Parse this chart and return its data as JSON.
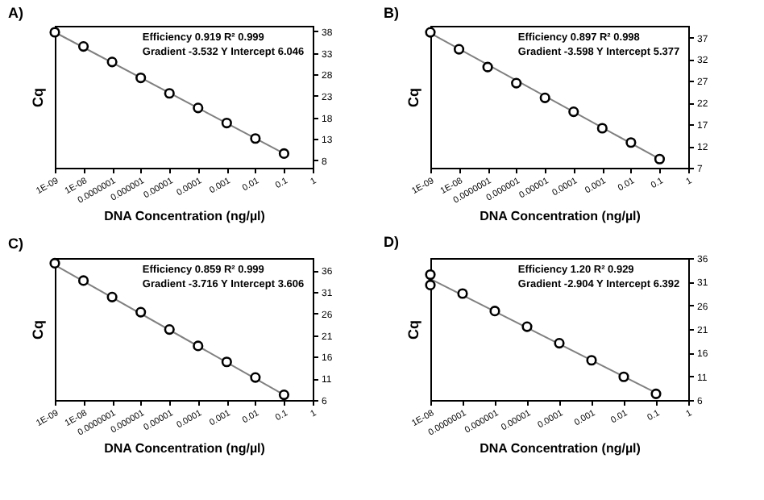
{
  "chart_data": [
    {
      "type": "scatter",
      "title": "A)",
      "xlabel": "DNA Concentration (ng/µl)",
      "ylabel": "Cq",
      "annotations": [
        "Efficiency 0.919   R² 0.999",
        "Gradient -3.532    Y Intercept 6.046"
      ],
      "log": "x",
      "marker": "circle",
      "xlim": [
        1e-09,
        1
      ],
      "xticks": [
        {
          "value": 1e-09,
          "label": "1E-09"
        },
        {
          "value": 1e-08,
          "label": "1E-08"
        },
        {
          "value": 1e-07,
          "label": "0.0000001"
        },
        {
          "value": 1e-06,
          "label": "0.000001"
        },
        {
          "value": 1e-05,
          "label": "0.00001"
        },
        {
          "value": 0.0001,
          "label": "0.0001"
        },
        {
          "value": 0.001,
          "label": "0.001"
        },
        {
          "value": 0.01,
          "label": "0.01"
        },
        {
          "value": 0.1,
          "label": "0.1"
        },
        {
          "value": 1,
          "label": "1"
        }
      ],
      "ylim": [
        6.3,
        39.3
      ],
      "yticks": [
        8,
        13,
        18,
        23,
        28,
        33,
        38
      ],
      "series": [
        {
          "type": "scatter",
          "color": "#000000",
          "x": [
            1e-09,
            1e-08,
            1e-07,
            1e-06,
            1e-05,
            0.0001,
            0.001,
            0.01,
            0.1
          ],
          "values": [
            37.8,
            34.5,
            30.9,
            27.2,
            23.6,
            20.2,
            16.7,
            13.1,
            9.6
          ]
        },
        {
          "type": "line",
          "marker": "none",
          "color": "#808080",
          "x": [
            1e-09,
            0.1
          ],
          "values": [
            37.8,
            9.6
          ]
        }
      ]
    },
    {
      "type": "scatter",
      "title": "B)",
      "xlabel": "DNA Concentration (ng/µl)",
      "ylabel": "Cq",
      "annotations": [
        "Efficiency 0.897   R² 0.998",
        "Gradient -3.598   Y Intercept 5.377"
      ],
      "log": "x",
      "marker": "circle",
      "xlim": [
        1e-09,
        1
      ],
      "xticks": [
        {
          "value": 1e-09,
          "label": "1E-09"
        },
        {
          "value": 1e-08,
          "label": "1E-08"
        },
        {
          "value": 1e-07,
          "label": "0.0000001"
        },
        {
          "value": 1e-06,
          "label": "0.000001"
        },
        {
          "value": 1e-05,
          "label": "0.00001"
        },
        {
          "value": 0.0001,
          "label": "0.0001"
        },
        {
          "value": 0.001,
          "label": "0.001"
        },
        {
          "value": 0.01,
          "label": "0.01"
        },
        {
          "value": 0.1,
          "label": "0.1"
        },
        {
          "value": 1,
          "label": "1"
        }
      ],
      "ylim": [
        7,
        39.7
      ],
      "yticks": [
        7,
        12,
        17,
        22,
        27,
        32,
        37
      ],
      "series": [
        {
          "type": "scatter",
          "color": "#000000",
          "x": [
            1e-09,
            1e-08,
            1e-07,
            1e-06,
            1e-05,
            0.0001,
            0.001,
            0.01,
            0.1
          ],
          "values": [
            38.2,
            34.3,
            30.2,
            26.5,
            23.1,
            19.9,
            16.1,
            12.8,
            9.0
          ]
        },
        {
          "type": "line",
          "marker": "none",
          "color": "#808080",
          "x": [
            1e-09,
            0.1
          ],
          "values": [
            38.0,
            9.0
          ]
        }
      ]
    },
    {
      "type": "scatter",
      "title": "C)",
      "xlabel": "DNA Concentration (ng/µl)",
      "ylabel": "Cq",
      "annotations": [
        "Efficiency 0.859  R² 0.999",
        "Gradient -3.716  Y Intercept 3.606"
      ],
      "log": "x",
      "marker": "circle",
      "xlim": [
        1e-09,
        1
      ],
      "xticks": [
        {
          "value": 1e-09,
          "label": "1E-09"
        },
        {
          "value": 1e-08,
          "label": "1E-08"
        },
        {
          "value": 1e-07,
          "label": "0.0000001"
        },
        {
          "value": 1e-06,
          "label": "0.000001"
        },
        {
          "value": 1e-05,
          "label": "0.00001"
        },
        {
          "value": 0.0001,
          "label": "0.0001"
        },
        {
          "value": 0.001,
          "label": "0.001"
        },
        {
          "value": 0.01,
          "label": "0.01"
        },
        {
          "value": 0.1,
          "label": "0.1"
        },
        {
          "value": 1,
          "label": "1"
        }
      ],
      "ylim": [
        6,
        38.8
      ],
      "yticks": [
        6,
        11,
        16,
        21,
        26,
        31,
        36
      ],
      "series": [
        {
          "type": "scatter",
          "color": "#000000",
          "x": [
            1e-09,
            1e-08,
            1e-07,
            1e-06,
            1e-05,
            0.0001,
            0.001,
            0.01,
            0.1
          ],
          "values": [
            37.6,
            33.6,
            29.8,
            26.3,
            22.3,
            18.5,
            14.8,
            11.2,
            7.2
          ]
        },
        {
          "type": "line",
          "marker": "none",
          "color": "#808080",
          "x": [
            1e-09,
            0.1
          ],
          "values": [
            37.2,
            7.2
          ]
        }
      ]
    },
    {
      "type": "scatter",
      "title": "D)",
      "xlabel": "DNA Concentration (ng/µl)",
      "ylabel": "Cq",
      "annotations": [
        "Efficiency 1.20        R² 0.929",
        "Gradient -2.904     Y Intercept 6.392"
      ],
      "log": "x",
      "marker": "circle",
      "xlim": [
        1e-08,
        1
      ],
      "xticks": [
        {
          "value": 1e-08,
          "label": "1E-08"
        },
        {
          "value": 1e-07,
          "label": "0.0000001"
        },
        {
          "value": 1e-06,
          "label": "0.000001"
        },
        {
          "value": 1e-05,
          "label": "0.00001"
        },
        {
          "value": 0.0001,
          "label": "0.0001"
        },
        {
          "value": 0.001,
          "label": "0.001"
        },
        {
          "value": 0.01,
          "label": "0.01"
        },
        {
          "value": 0.1,
          "label": "0.1"
        },
        {
          "value": 1,
          "label": "1"
        }
      ],
      "ylim": [
        6,
        36
      ],
      "yticks": [
        6,
        11,
        16,
        21,
        26,
        31,
        36
      ],
      "series": [
        {
          "type": "scatter",
          "color": "#000000",
          "x": [
            1e-08,
            1e-08,
            1e-07,
            1e-06,
            1e-05,
            0.0001,
            0.001,
            0.01,
            0.1
          ],
          "values": [
            32.5,
            30.3,
            28.5,
            24.8,
            21.5,
            18.0,
            14.4,
            10.9,
            7.3
          ]
        },
        {
          "type": "line",
          "marker": "none",
          "color": "#808080",
          "x": [
            1e-08,
            0.1
          ],
          "values": [
            31.6,
            7.5
          ]
        }
      ]
    }
  ]
}
